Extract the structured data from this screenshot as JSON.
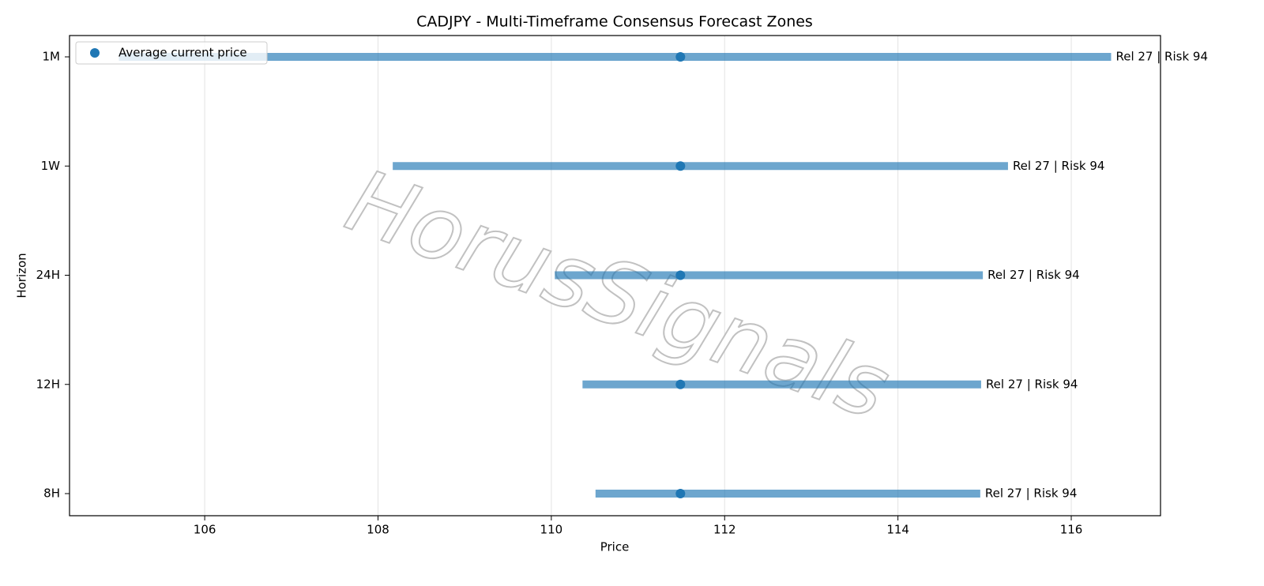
{
  "chart_data": {
    "type": "range",
    "title": "CADJPY - Multi-Timeframe Consensus Forecast Zones",
    "x_label": "Price",
    "y_label": "Horizon",
    "categories": [
      "1M",
      "1W",
      "24H",
      "12H",
      "8H"
    ],
    "ranges": {
      "color": "#1f77b4",
      "low": [
        105.01,
        108.17,
        110.04,
        110.36,
        110.51
      ],
      "high": [
        116.46,
        115.27,
        114.98,
        114.96,
        114.95
      ]
    },
    "points": {
      "name": "Average current price",
      "color": "#1f77b4",
      "values": [
        111.49,
        111.49,
        111.49,
        111.49,
        111.49
      ]
    },
    "bar_labels": [
      "Rel 27 | Risk 94",
      "Rel 27 | Risk 94",
      "Rel 27 | Risk 94",
      "Rel 27 | Risk 94",
      "Rel 27 | Risk 94"
    ],
    "xlim": [
      104.44,
      117.03
    ],
    "xticks": [
      106,
      108,
      110,
      112,
      114,
      116
    ],
    "grid": true,
    "legend": "upper left",
    "watermark": "HorusSignals"
  }
}
